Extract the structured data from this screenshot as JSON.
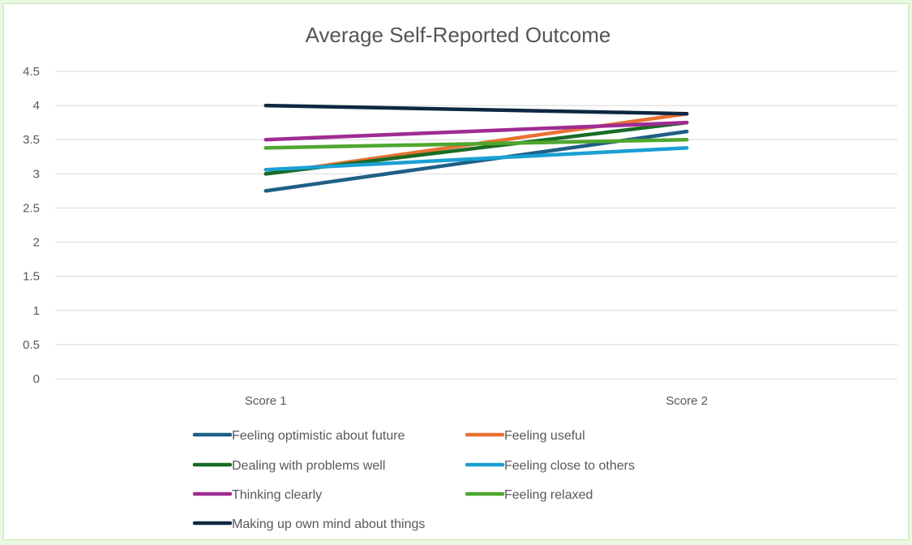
{
  "chart_data": {
    "type": "line",
    "title": "Average Self-Reported Outcome",
    "xlabel": "",
    "ylabel": "",
    "categories": [
      "Score 1",
      "Score 2"
    ],
    "ylim": [
      0,
      4.5
    ],
    "yticks": [
      "0",
      "0.5",
      "1",
      "1.5",
      "2",
      "2.5",
      "3",
      "3.5",
      "4",
      "4.5"
    ],
    "grid": true,
    "legend_position": "bottom",
    "series": [
      {
        "name": "Feeling optimistic about future",
        "values": [
          2.75,
          3.62
        ],
        "color": "#1f5f86"
      },
      {
        "name": "Feeling useful",
        "values": [
          3.0,
          3.88
        ],
        "color": "#e97132"
      },
      {
        "name": "Dealing with problems well",
        "values": [
          3.0,
          3.75
        ],
        "color": "#196b24"
      },
      {
        "name": "Feeling close to others",
        "values": [
          3.06,
          3.38
        ],
        "color": "#1aa0d4"
      },
      {
        "name": "Thinking clearly",
        "values": [
          3.5,
          3.75
        ],
        "color": "#a02b93"
      },
      {
        "name": "Feeling relaxed",
        "values": [
          3.38,
          3.5
        ],
        "color": "#4ea72e"
      },
      {
        "name": "Making up own mind about things",
        "values": [
          4.0,
          3.88
        ],
        "color": "#0e2841"
      }
    ]
  }
}
